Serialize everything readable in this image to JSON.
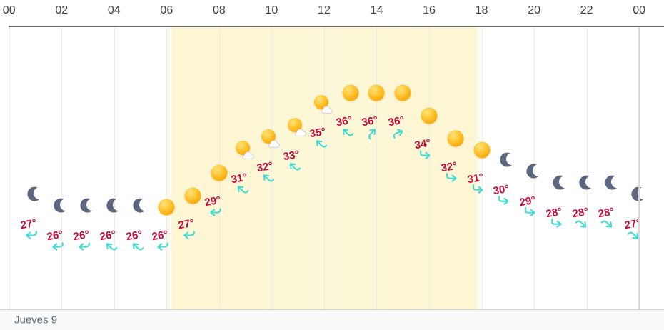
{
  "axis": {
    "tick_labels": [
      "00",
      "02",
      "04",
      "06",
      "08",
      "10",
      "12",
      "14",
      "16",
      "18",
      "20",
      "22",
      "00"
    ]
  },
  "footer": {
    "day_label": "Jueves 9"
  },
  "colors": {
    "temperature_text": "#c30b3c",
    "wind_arrow": "#3edad4",
    "moon": "#5e6781",
    "sun_core": "#f7a608",
    "sun_light": "#ffe37a",
    "daylight_band": "#f9eeaa",
    "gridline": "#ebeae4",
    "axis_line": "#6f6f6f",
    "hour_label": "#3e3e3e",
    "footer_text": "#5c6b78"
  },
  "chart_data": {
    "type": "scatter",
    "title": "",
    "x_ticks": [
      "00",
      "02",
      "04",
      "06",
      "08",
      "10",
      "12",
      "14",
      "16",
      "18",
      "20",
      "22",
      "00"
    ],
    "x_axis_position": "top",
    "day_label": "Jueves 9",
    "hours": [
      "01",
      "02",
      "03",
      "04",
      "05",
      "06",
      "07",
      "08",
      "09",
      "10",
      "11",
      "12",
      "13",
      "14",
      "15",
      "16",
      "17",
      "18",
      "19",
      "20",
      "21",
      "22",
      "23",
      "00"
    ],
    "temperatures_c": [
      27,
      26,
      26,
      26,
      26,
      26,
      27,
      29,
      31,
      32,
      33,
      35,
      36,
      36,
      36,
      34,
      32,
      31,
      30,
      29,
      28,
      28,
      28,
      27
    ],
    "temperature_unit": "°",
    "sky_icons": [
      "moon",
      "moon",
      "moon",
      "moon",
      "moon",
      "sun",
      "sun",
      "sun",
      "sun-cloud",
      "sun-cloud",
      "sun-cloud",
      "sun-cloud",
      "sun",
      "sun",
      "sun",
      "sun",
      "sun",
      "sun",
      "moon",
      "moon",
      "moon",
      "moon",
      "moon",
      "moon"
    ],
    "wind_directions": [
      "w",
      "w",
      "w",
      "nw",
      "nw",
      "w",
      "w",
      "w",
      "nw",
      "nw",
      "nw",
      "nw",
      "nw",
      "ne",
      "ene",
      "e",
      "e",
      "e",
      "e",
      "e",
      "e",
      "se",
      "se",
      "se"
    ],
    "daylight": {
      "from_hour": 6,
      "to_hour": 18
    },
    "ylim_temperature": [
      26,
      36
    ]
  }
}
